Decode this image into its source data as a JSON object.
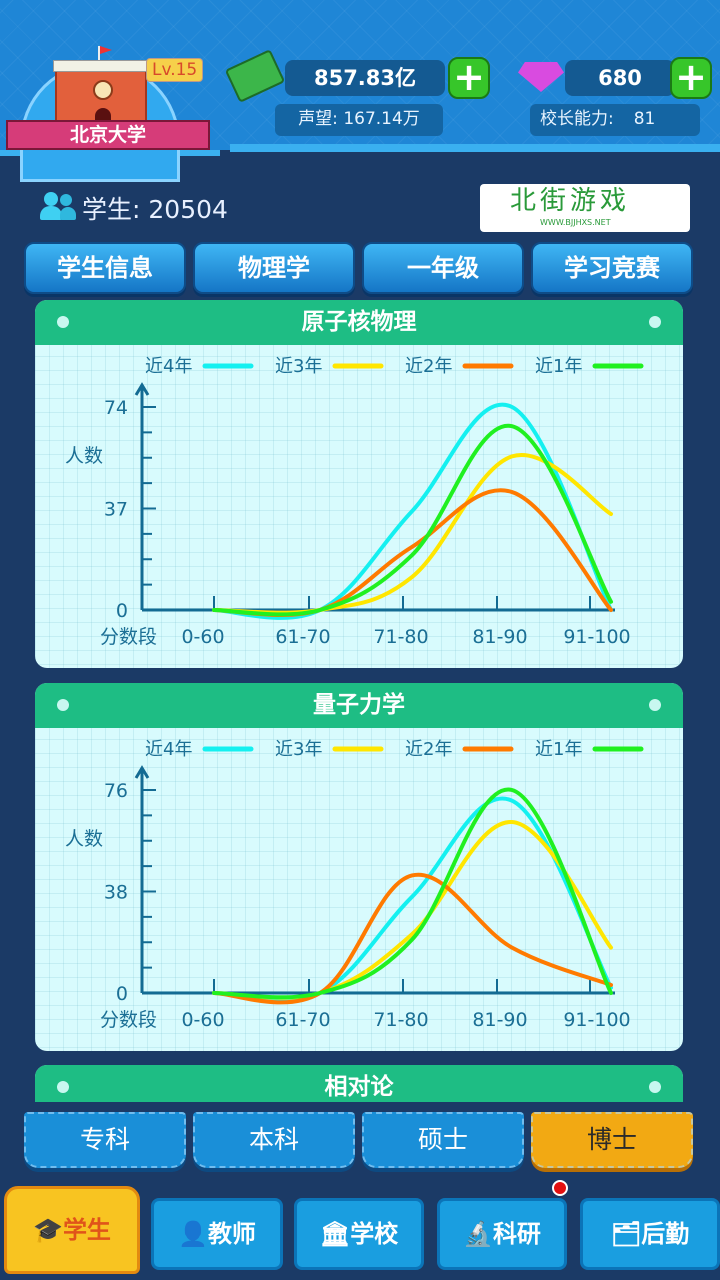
{
  "header": {
    "school_name": "北京大学",
    "level": "Lv.15",
    "money": "857.83亿",
    "prestige_label": "声望:",
    "prestige": "167.14万",
    "gems": "680",
    "ability_label": "校长能力:",
    "ability": "81"
  },
  "students": {
    "label": "学生:",
    "count": "20504"
  },
  "filters": [
    "学生信息",
    "物理学",
    "一年级",
    "学习竞赛"
  ],
  "legend": [
    {
      "name": "近4年",
      "color": "#14f0f0"
    },
    {
      "name": "近3年",
      "color": "#ffe600"
    },
    {
      "name": "近2年",
      "color": "#ff7a00"
    },
    {
      "name": "近1年",
      "color": "#20f020"
    }
  ],
  "chart_data": [
    {
      "type": "line",
      "title": "原子核物理",
      "ylabel": "人数",
      "xlabel": "分数段",
      "categories": [
        "0-60",
        "61-70",
        "71-80",
        "81-90",
        "91-100"
      ],
      "yticks": [
        "0",
        "37",
        "74"
      ],
      "ylim": [
        0,
        74
      ],
      "series": [
        {
          "name": "近4年",
          "values": [
            0,
            0,
            36,
            74,
            0
          ]
        },
        {
          "name": "近3年",
          "values": [
            0,
            0,
            12,
            56,
            35
          ]
        },
        {
          "name": "近2年",
          "values": [
            0,
            0,
            23,
            43,
            0
          ]
        },
        {
          "name": "近1年",
          "values": [
            0,
            0,
            20,
            67,
            3
          ]
        }
      ]
    },
    {
      "type": "line",
      "title": "量子力学",
      "ylabel": "人数",
      "xlabel": "分数段",
      "categories": [
        "0-60",
        "61-70",
        "71-80",
        "81-90",
        "91-100"
      ],
      "yticks": [
        "0",
        "38",
        "76"
      ],
      "ylim": [
        0,
        76
      ],
      "series": [
        {
          "name": "近4年",
          "values": [
            0,
            0,
            36,
            72,
            2
          ]
        },
        {
          "name": "近3年",
          "values": [
            0,
            0,
            22,
            64,
            17
          ]
        },
        {
          "name": "近2年",
          "values": [
            0,
            0,
            44,
            17,
            3
          ]
        },
        {
          "name": "近1年",
          "values": [
            0,
            0,
            20,
            76,
            0
          ]
        }
      ]
    }
  ],
  "third_card_title": "相对论",
  "levels": [
    {
      "label": "专科"
    },
    {
      "label": "本科"
    },
    {
      "label": "硕士"
    },
    {
      "label": "博士",
      "active": true
    }
  ],
  "nav": [
    "学生",
    "教师",
    "学校",
    "科研",
    "后勤"
  ],
  "watermark": {
    "text": "北街游戏",
    "url": "WWW.BJJHXS.NET"
  }
}
